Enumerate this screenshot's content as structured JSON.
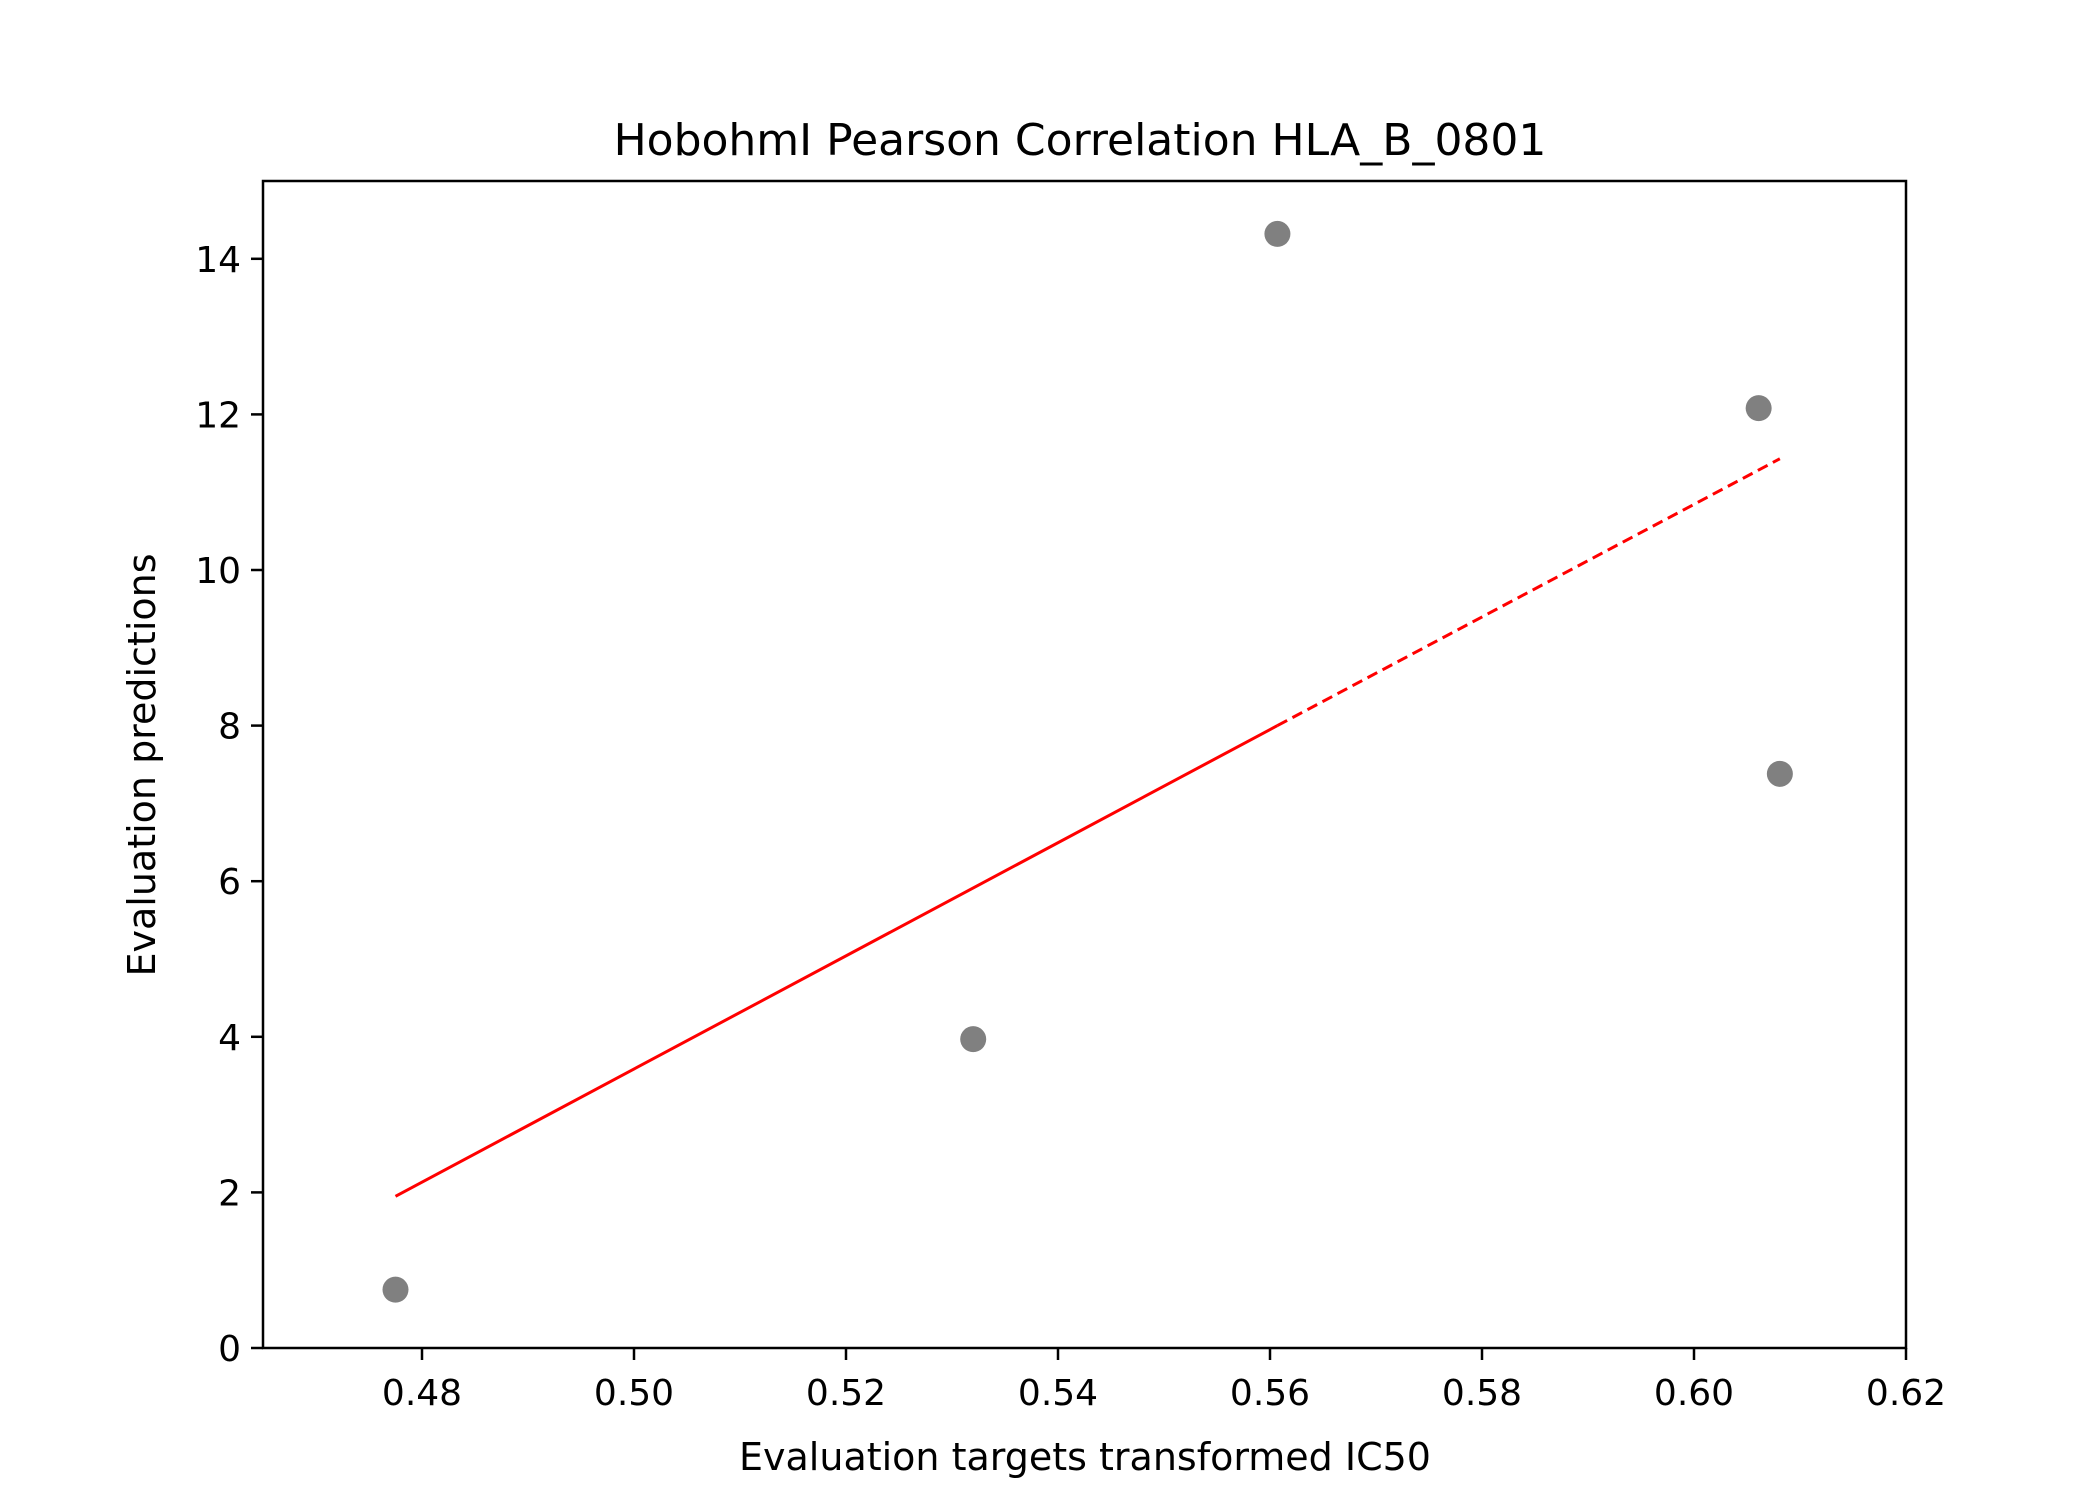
{
  "chart_data": {
    "type": "scatter",
    "title": "HobohmI Pearson Correlation HLA_B_0801",
    "xlabel": "Evaluation targets transformed IC50",
    "ylabel": "Evaluation predictions",
    "xlim": [
      0.465,
      0.62
    ],
    "ylim": [
      0,
      15
    ],
    "xticks": [
      0.48,
      0.5,
      0.52,
      0.54,
      0.56,
      0.58,
      0.6,
      0.62
    ],
    "xtick_labels": [
      "0.48",
      "0.50",
      "0.52",
      "0.54",
      "0.56",
      "0.58",
      "0.60",
      "0.62"
    ],
    "yticks": [
      0,
      2,
      4,
      6,
      8,
      10,
      12,
      14
    ],
    "ytick_labels": [
      "0",
      "2",
      "4",
      "6",
      "8",
      "10",
      "12",
      "14"
    ],
    "grid": false,
    "points": [
      {
        "x": 0.4775,
        "y": 0.75
      },
      {
        "x": 0.532,
        "y": 3.97
      },
      {
        "x": 0.5607,
        "y": 14.32
      },
      {
        "x": 0.6061,
        "y": 12.08
      },
      {
        "x": 0.6081,
        "y": 7.38
      }
    ],
    "point_color": "#808080",
    "fit_line": {
      "color": "#ff0000",
      "solid_segment": [
        [
          0.4775,
          1.95
        ],
        [
          0.5607,
          8.0
        ]
      ],
      "dashed_segment": [
        [
          0.5607,
          8.0
        ],
        [
          0.6081,
          11.43
        ]
      ]
    }
  }
}
